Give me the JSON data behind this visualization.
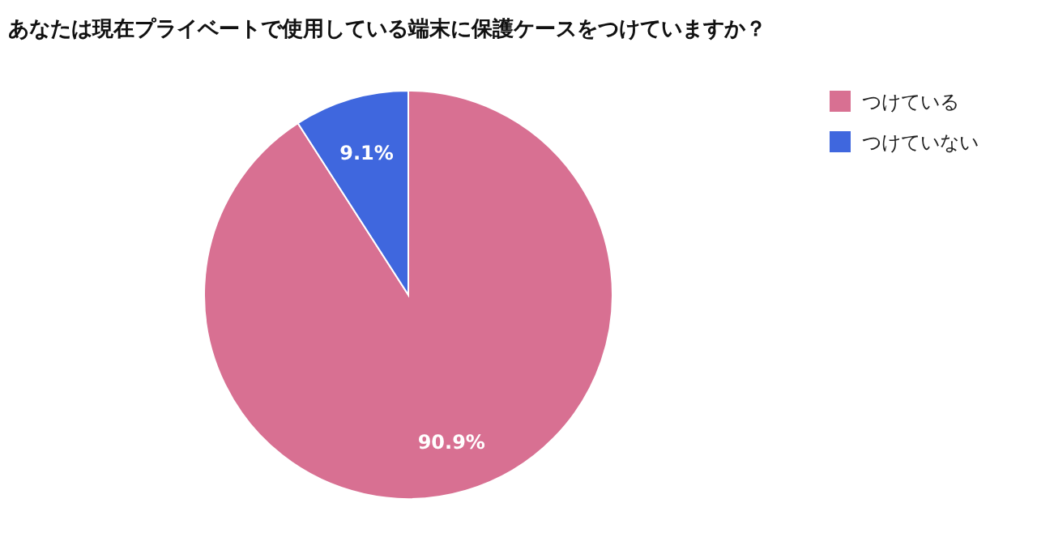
{
  "chart_data": {
    "type": "pie",
    "title": "あなたは現在プライベートで使用している端末に保護ケースをつけていますか？",
    "categories": [
      "つけている",
      "つけていない"
    ],
    "values": [
      90.9,
      9.1
    ],
    "value_labels": [
      "90.9%",
      "9.1%"
    ],
    "colors": [
      "#d87092",
      "#3f67de"
    ],
    "legend": "top right"
  }
}
